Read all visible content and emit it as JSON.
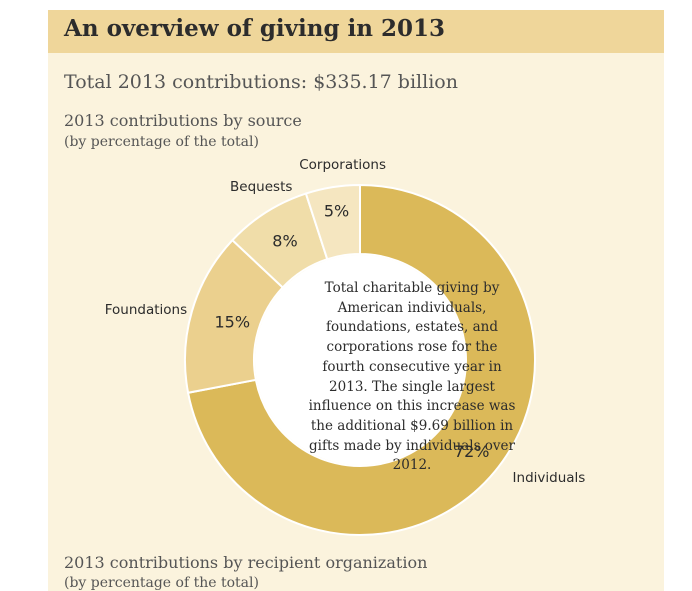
{
  "header": {
    "title": "An overview of giving in 2013"
  },
  "summary": {
    "total_label": "Total 2013 contributions: $335.17 billion"
  },
  "source_section": {
    "title": "2013 contributions by source",
    "subtitle": "(by percentage of the total)"
  },
  "recipient_section": {
    "title": "2013 contributions by recipient organization",
    "subtitle": "(by percentage of the total)"
  },
  "center_note": "Total charitable giving by American individuals, foundations, estates, and corporations rose for the fourth consecutive year in 2013. The single largest influence on this increase was the additional $9.69 billion in gifts made by individuals over 2012.",
  "colors": {
    "background": "#fbf3dd",
    "header": "#efd69a"
  },
  "chart_data": {
    "type": "pie",
    "variant": "donut",
    "categories": [
      "Individuals",
      "Foundations",
      "Bequests",
      "Corporations"
    ],
    "values": [
      72,
      15,
      8,
      5
    ],
    "value_labels": [
      "72%",
      "15%",
      "8%",
      "5%"
    ],
    "colors": [
      "#dbb959",
      "#ebd08e",
      "#f0dda9",
      "#f5e6c0"
    ],
    "start_at": "12 o'clock",
    "direction": "clockwise",
    "title": "2013 contributions by source",
    "subtitle": "(by percentage of the total)"
  }
}
